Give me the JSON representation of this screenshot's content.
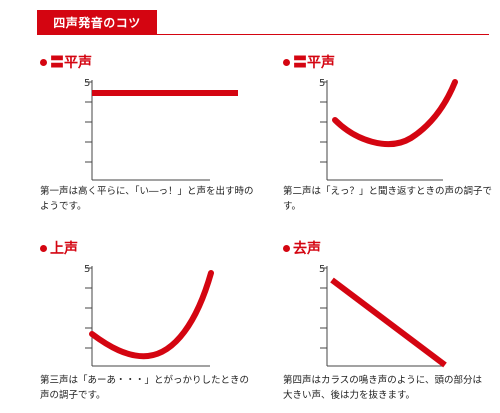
{
  "header": {
    "title": "四声発音のコツ"
  },
  "accent_color": "#d40511",
  "panels": [
    {
      "title": "平声",
      "title_prefix": "〓",
      "y_tick_label": "5",
      "caption_line1": "第一声は高く平らに、「い―っ！」と声を出す時の",
      "caption_line2": "ようです。"
    },
    {
      "title": "平声",
      "title_prefix": "〓",
      "y_tick_label": "5",
      "caption_line1": "第二声は「えっ？」と聞き返すときの声の調子で",
      "caption_line2": "す。"
    },
    {
      "title": "上声",
      "title_prefix": "",
      "y_tick_label": "5",
      "caption_line1": "第三声は「あーあ・・・」とがっかりしたときの",
      "caption_line2": "声の調子です。"
    },
    {
      "title": "去声",
      "title_prefix": "",
      "y_tick_label": "5",
      "caption_line1": "第四声はカラスの鳴き声のように、頭の部分は",
      "caption_line2": "大きい声、後は力を抜きます。"
    }
  ]
}
